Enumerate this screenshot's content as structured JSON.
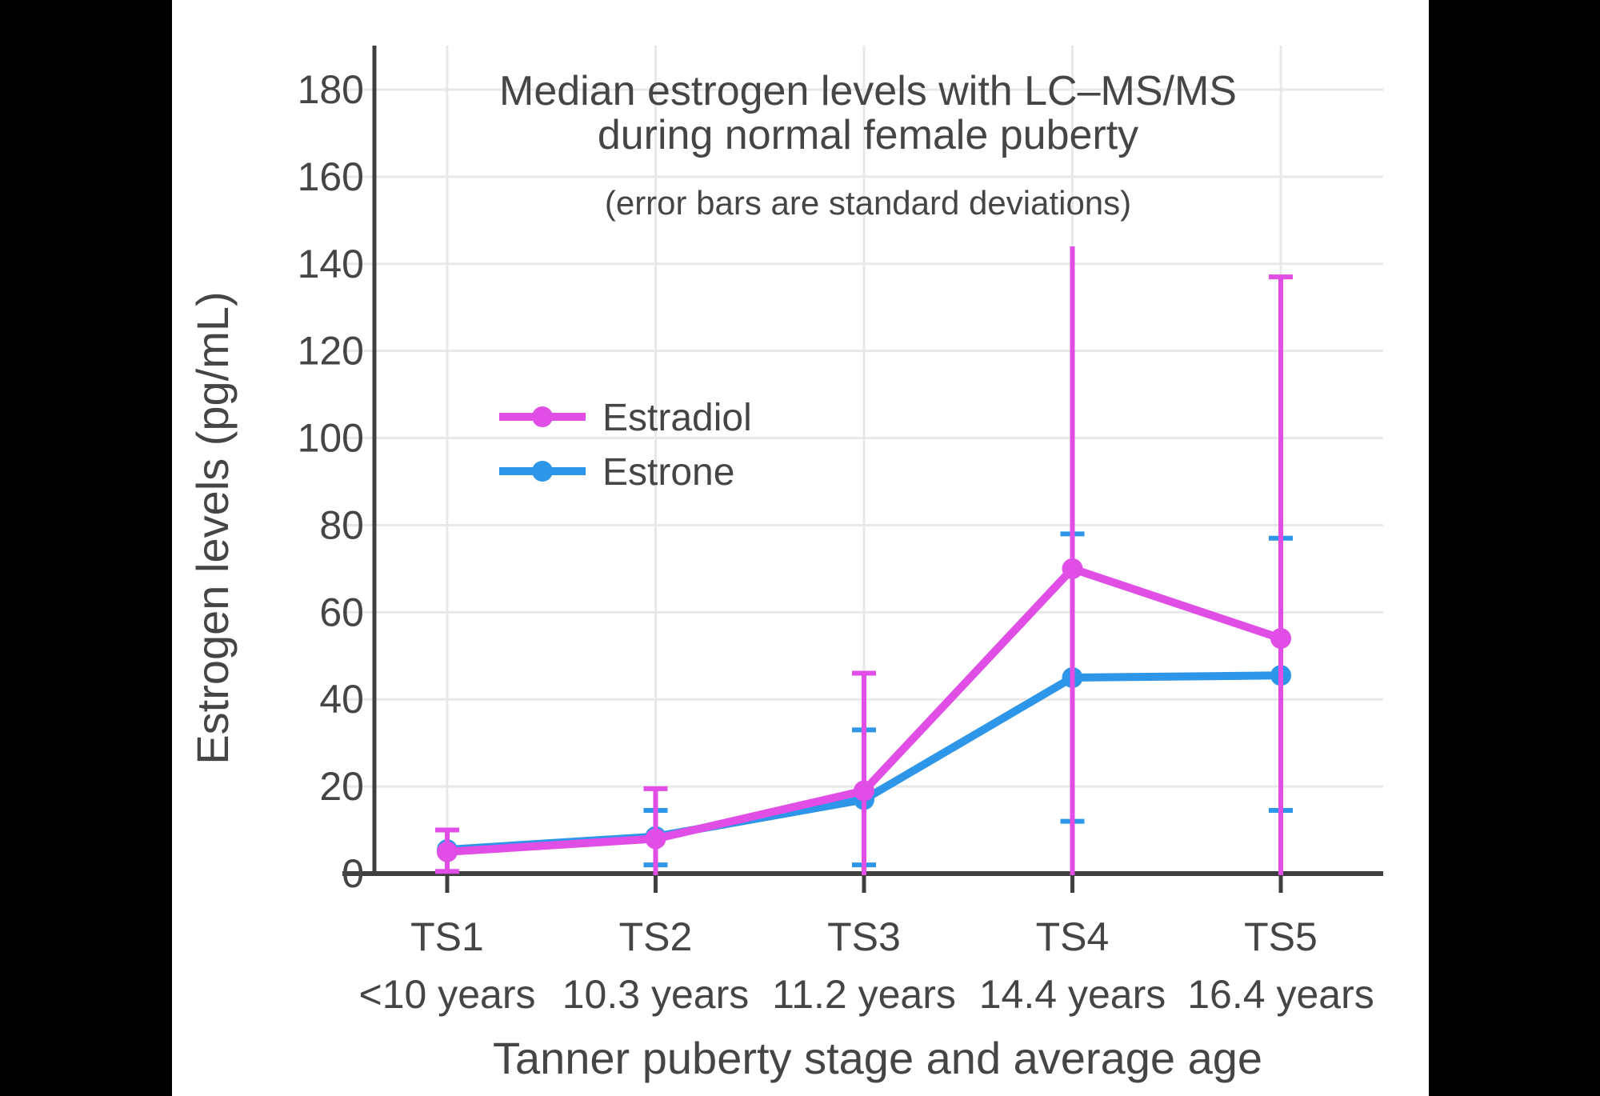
{
  "window": {
    "outer_background": "#000000",
    "panel_background": "#ffffff"
  },
  "chart_data": {
    "type": "line",
    "title_lines": [
      "Median estrogen levels with LC–MS/MS",
      "during normal female puberty"
    ],
    "subtitle": "(error bars are standard deviations)",
    "xlabel": "Tanner puberty stage and average age",
    "ylabel": "Estrogen levels (pg/mL)",
    "categories": [
      "TS1",
      "TS2",
      "TS3",
      "TS4",
      "TS5"
    ],
    "category_ages": [
      "<10 years",
      "10.3 years",
      "11.2 years",
      "14.4 years",
      "16.4 years"
    ],
    "yticks": [
      0,
      20,
      40,
      60,
      80,
      100,
      120,
      140,
      160,
      180
    ],
    "ylim": [
      0,
      190
    ],
    "grid": true,
    "legend": {
      "position": "inside-left",
      "entries": [
        "Estradiol",
        "Estrone"
      ]
    },
    "series": [
      {
        "name": "Estradiol",
        "color": "#e04ee6",
        "values": [
          5,
          8,
          19,
          70,
          54
        ],
        "error_high": [
          10,
          19.5,
          46,
          144,
          137
        ],
        "error_low": [
          0.5,
          -3.5,
          -8,
          -4,
          -29
        ],
        "cap_high": [
          true,
          true,
          true,
          false,
          true
        ]
      },
      {
        "name": "Estrone",
        "color": "#2e96e8",
        "values": [
          5.5,
          8.5,
          17,
          45,
          45.5
        ],
        "error_high": [
          null,
          14.5,
          33,
          78,
          77
        ],
        "error_low": [
          null,
          2,
          2,
          12,
          14.5
        ],
        "cap_high": [
          true,
          true,
          true,
          true,
          true
        ]
      }
    ],
    "style": {
      "grid_color": "#e8e8e8",
      "axis_color": "#3f3f3f",
      "text_color": "#454545"
    }
  }
}
